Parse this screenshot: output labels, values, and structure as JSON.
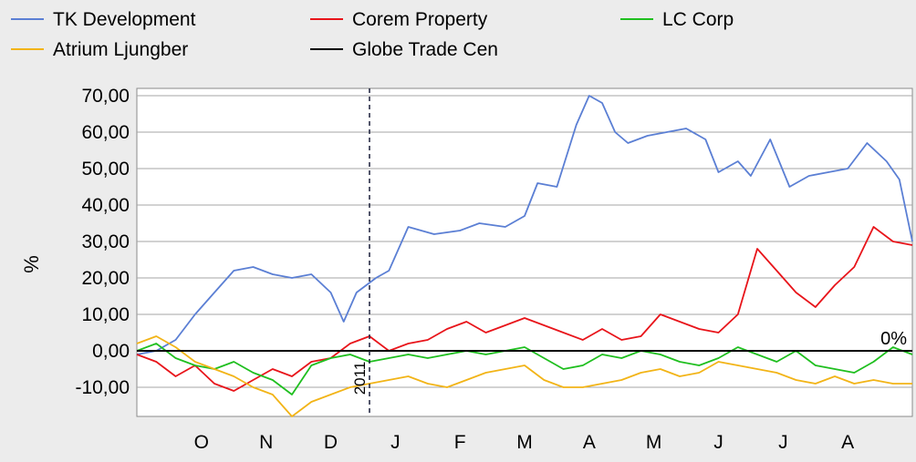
{
  "chart_data": {
    "type": "line",
    "ylabel": "%",
    "ylim": [
      -18,
      72
    ],
    "yticks": [
      70,
      60,
      50,
      40,
      30,
      20,
      10,
      0,
      -10
    ],
    "ytick_labels": [
      "70,00",
      "60,00",
      "50,00",
      "40,00",
      "30,00",
      "20,00",
      "10,00",
      "0,00",
      "-10,00"
    ],
    "x_domain": [
      0,
      12
    ],
    "month_labels": [
      {
        "label": "O",
        "x": 1.0
      },
      {
        "label": "N",
        "x": 2.0
      },
      {
        "label": "D",
        "x": 3.0
      },
      {
        "label": "J",
        "x": 4.0
      },
      {
        "label": "F",
        "x": 5.0
      },
      {
        "label": "M",
        "x": 6.0
      },
      {
        "label": "A",
        "x": 7.0
      },
      {
        "label": "M",
        "x": 8.0
      },
      {
        "label": "J",
        "x": 9.0
      },
      {
        "label": "J",
        "x": 10.0
      },
      {
        "label": "A",
        "x": 11.0
      }
    ],
    "year_marker": {
      "label": "2011",
      "x": 3.6
    },
    "zero_label": "0%",
    "grid": true,
    "legend_position": "top",
    "series": [
      {
        "name": "TK Development",
        "color": "#5b7fd4",
        "x": [
          0,
          0.3,
          0.6,
          0.9,
          1.2,
          1.5,
          1.8,
          2.1,
          2.4,
          2.7,
          3.0,
          3.2,
          3.4,
          3.7,
          3.9,
          4.2,
          4.6,
          5.0,
          5.3,
          5.7,
          6.0,
          6.2,
          6.5,
          6.8,
          7.0,
          7.2,
          7.4,
          7.6,
          7.9,
          8.2,
          8.5,
          8.8,
          9.0,
          9.3,
          9.5,
          9.8,
          10.1,
          10.4,
          10.7,
          11.0,
          11.3,
          11.6,
          11.8,
          12.0
        ],
        "values": [
          -1,
          0,
          3,
          10,
          16,
          22,
          23,
          21,
          20,
          21,
          16,
          8,
          16,
          20,
          22,
          34,
          32,
          33,
          35,
          34,
          37,
          46,
          45,
          62,
          70,
          68,
          60,
          57,
          59,
          60,
          61,
          58,
          49,
          52,
          48,
          58,
          45,
          48,
          49,
          50,
          57,
          52,
          47,
          30
        ]
      },
      {
        "name": "Corem Property",
        "color": "#e8141a",
        "x": [
          0,
          0.3,
          0.6,
          0.9,
          1.2,
          1.5,
          1.8,
          2.1,
          2.4,
          2.7,
          3.0,
          3.3,
          3.6,
          3.9,
          4.2,
          4.5,
          4.8,
          5.1,
          5.4,
          5.7,
          6.0,
          6.3,
          6.6,
          6.9,
          7.2,
          7.5,
          7.8,
          8.1,
          8.4,
          8.7,
          9.0,
          9.3,
          9.6,
          9.9,
          10.2,
          10.5,
          10.8,
          11.1,
          11.4,
          11.7,
          12.0
        ],
        "values": [
          -1,
          -3,
          -7,
          -4,
          -9,
          -11,
          -8,
          -5,
          -7,
          -3,
          -2,
          2,
          4,
          0,
          2,
          3,
          6,
          8,
          5,
          7,
          9,
          7,
          5,
          3,
          6,
          3,
          4,
          10,
          8,
          6,
          5,
          10,
          28,
          22,
          16,
          12,
          18,
          23,
          34,
          30,
          29
        ]
      },
      {
        "name": "LC Corp",
        "color": "#1fbf1f",
        "x": [
          0,
          0.3,
          0.6,
          0.9,
          1.2,
          1.5,
          1.8,
          2.1,
          2.4,
          2.7,
          3.0,
          3.3,
          3.6,
          3.9,
          4.2,
          4.5,
          4.8,
          5.1,
          5.4,
          5.7,
          6.0,
          6.3,
          6.6,
          6.9,
          7.2,
          7.5,
          7.8,
          8.1,
          8.4,
          8.7,
          9.0,
          9.3,
          9.6,
          9.9,
          10.2,
          10.5,
          10.8,
          11.1,
          11.4,
          11.7,
          12.0
        ],
        "values": [
          0,
          2,
          -2,
          -4,
          -5,
          -3,
          -6,
          -8,
          -12,
          -4,
          -2,
          -1,
          -3,
          -2,
          -1,
          -2,
          -1,
          0,
          -1,
          0,
          1,
          -2,
          -5,
          -4,
          -1,
          -2,
          0,
          -1,
          -3,
          -4,
          -2,
          1,
          -1,
          -3,
          0,
          -4,
          -5,
          -6,
          -3,
          1,
          -1
        ]
      },
      {
        "name": "Atrium Ljungber",
        "color": "#f2b417",
        "x": [
          0,
          0.3,
          0.6,
          0.9,
          1.2,
          1.5,
          1.8,
          2.1,
          2.4,
          2.7,
          3.0,
          3.3,
          3.6,
          3.9,
          4.2,
          4.5,
          4.8,
          5.1,
          5.4,
          5.7,
          6.0,
          6.3,
          6.6,
          6.9,
          7.2,
          7.5,
          7.8,
          8.1,
          8.4,
          8.7,
          9.0,
          9.3,
          9.6,
          9.9,
          10.2,
          10.5,
          10.8,
          11.1,
          11.4,
          11.7,
          12.0
        ],
        "values": [
          2,
          4,
          1,
          -3,
          -5,
          -7,
          -10,
          -12,
          -18,
          -14,
          -12,
          -10,
          -9,
          -8,
          -7,
          -9,
          -10,
          -8,
          -6,
          -5,
          -4,
          -8,
          -10,
          -10,
          -9,
          -8,
          -6,
          -5,
          -7,
          -6,
          -3,
          -4,
          -5,
          -6,
          -8,
          -9,
          -7,
          -9,
          -8,
          -9,
          -9
        ]
      },
      {
        "name": "Globe Trade Cen",
        "color": "#000000",
        "x": [],
        "values": []
      }
    ]
  }
}
